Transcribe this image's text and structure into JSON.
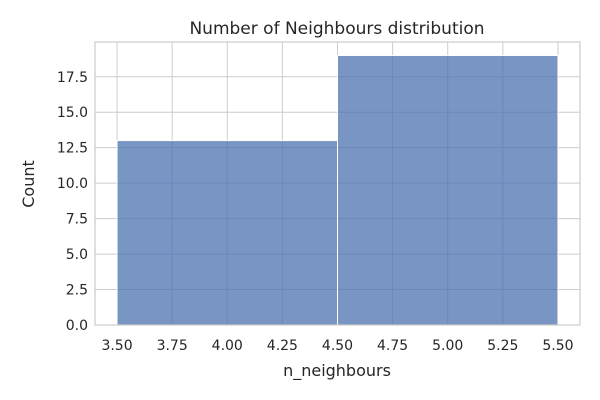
{
  "chart_data": {
    "type": "bar",
    "title": "Number of Neighbours distribution",
    "xlabel": "n_neighbours",
    "ylabel": "Count",
    "bins": [
      {
        "x0": 3.5,
        "x1": 4.5,
        "count": 13
      },
      {
        "x0": 4.5,
        "x1": 5.5,
        "count": 19
      }
    ],
    "xlim": [
      3.4,
      5.6
    ],
    "ylim": [
      0,
      19.95
    ],
    "xticks": [
      "3.50",
      "3.75",
      "4.00",
      "4.25",
      "4.50",
      "4.75",
      "5.00",
      "5.25",
      "5.50"
    ],
    "yticks": [
      "0.0",
      "2.5",
      "5.0",
      "7.5",
      "10.0",
      "12.5",
      "15.0",
      "17.5"
    ],
    "grid": true,
    "bar_color": "#4c72b0",
    "bar_opacity": 0.75
  }
}
